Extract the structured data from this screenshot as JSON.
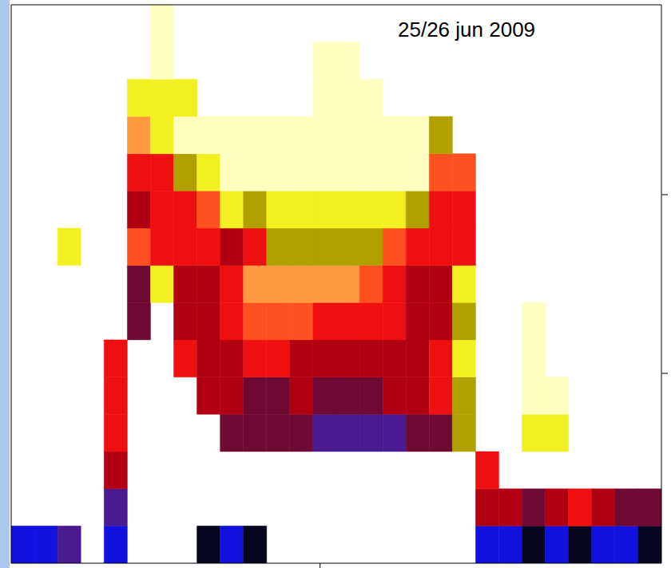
{
  "chart_data": {
    "type": "heatmap",
    "title": "25/26 jun 2009",
    "xlim": [
      0,
      28
    ],
    "ylim": [
      0,
      15
    ],
    "xticks": [
      13.3
    ],
    "yticks": [
      5.1,
      9.9
    ],
    "tick_labels": false,
    "color_range": [
      0,
      10
    ],
    "cells": [
      [
        1,
        1,
        2,
        null,
        1,
        null,
        null,
        null,
        0,
        1,
        0,
        null,
        null,
        null,
        null,
        null,
        null,
        null,
        null,
        null,
        1,
        1,
        0,
        1,
        0,
        1,
        1,
        0
      ],
      [
        null,
        null,
        null,
        null,
        2,
        null,
        null,
        null,
        null,
        null,
        null,
        null,
        null,
        null,
        null,
        null,
        null,
        null,
        null,
        null,
        4,
        4,
        3,
        4,
        5,
        4,
        3,
        3
      ],
      [
        null,
        null,
        null,
        null,
        4,
        null,
        null,
        null,
        null,
        null,
        null,
        null,
        null,
        null,
        null,
        null,
        null,
        null,
        null,
        null,
        5,
        null,
        null,
        null,
        null,
        null,
        null,
        null
      ],
      [
        null,
        null,
        null,
        null,
        5,
        null,
        null,
        null,
        null,
        3,
        3,
        3,
        3,
        2,
        2,
        2,
        2,
        3,
        3,
        8,
        null,
        null,
        9,
        9,
        null,
        null,
        null,
        null
      ],
      [
        null,
        null,
        null,
        null,
        5,
        null,
        null,
        null,
        4,
        4,
        3,
        3,
        4,
        3,
        3,
        3,
        4,
        4,
        5,
        8,
        null,
        null,
        10,
        10,
        null,
        null,
        null,
        null
      ],
      [
        null,
        null,
        null,
        null,
        5,
        null,
        null,
        5,
        4,
        4,
        5,
        5,
        4,
        4,
        4,
        4,
        4,
        4,
        5,
        9,
        null,
        null,
        10,
        null,
        null,
        null,
        null,
        null
      ],
      [
        null,
        null,
        null,
        null,
        null,
        3,
        null,
        4,
        4,
        5,
        6,
        6,
        6,
        5,
        5,
        5,
        5,
        4,
        4,
        8,
        null,
        null,
        10,
        null,
        null,
        null,
        null,
        null
      ],
      [
        null,
        null,
        null,
        null,
        null,
        3,
        9,
        4,
        4,
        5,
        7,
        7,
        7,
        7,
        7,
        6,
        5,
        4,
        4,
        9,
        null,
        null,
        null,
        null,
        null,
        null,
        null,
        null
      ],
      [
        null,
        null,
        9,
        null,
        null,
        6,
        5,
        5,
        5,
        4,
        5,
        8,
        8,
        8,
        8,
        8,
        6,
        5,
        5,
        5,
        null,
        null,
        null,
        null,
        null,
        null,
        null,
        null
      ],
      [
        null,
        null,
        null,
        null,
        null,
        4,
        5,
        5,
        6,
        9,
        8,
        9,
        9,
        9,
        9,
        9,
        9,
        8,
        5,
        5,
        null,
        null,
        null,
        null,
        null,
        null,
        null,
        null
      ],
      [
        null,
        null,
        null,
        null,
        null,
        5,
        5,
        8,
        9,
        10,
        10,
        10,
        10,
        10,
        10,
        10,
        10,
        10,
        6,
        6,
        null,
        null,
        null,
        null,
        null,
        null,
        null,
        null
      ],
      [
        null,
        null,
        null,
        null,
        null,
        7,
        9,
        10,
        10,
        10,
        10,
        10,
        10,
        10,
        10,
        10,
        10,
        10,
        8,
        null,
        null,
        null,
        null,
        null,
        null,
        null,
        null,
        null
      ],
      [
        null,
        null,
        null,
        null,
        null,
        9,
        9,
        9,
        null,
        null,
        null,
        null,
        null,
        10,
        10,
        10,
        null,
        null,
        null,
        null,
        null,
        null,
        null,
        null,
        null,
        null,
        null,
        null
      ],
      [
        null,
        null,
        null,
        null,
        null,
        null,
        10,
        null,
        null,
        null,
        null,
        null,
        null,
        10,
        10,
        null,
        null,
        null,
        null,
        null,
        null,
        null,
        null,
        null,
        null,
        null,
        null,
        null
      ],
      [
        null,
        null,
        null,
        null,
        null,
        null,
        10,
        null,
        null,
        null,
        null,
        null,
        null,
        null,
        null,
        null,
        null,
        null,
        null,
        null,
        null,
        null,
        null,
        null,
        null,
        null,
        null,
        null
      ]
    ]
  }
}
